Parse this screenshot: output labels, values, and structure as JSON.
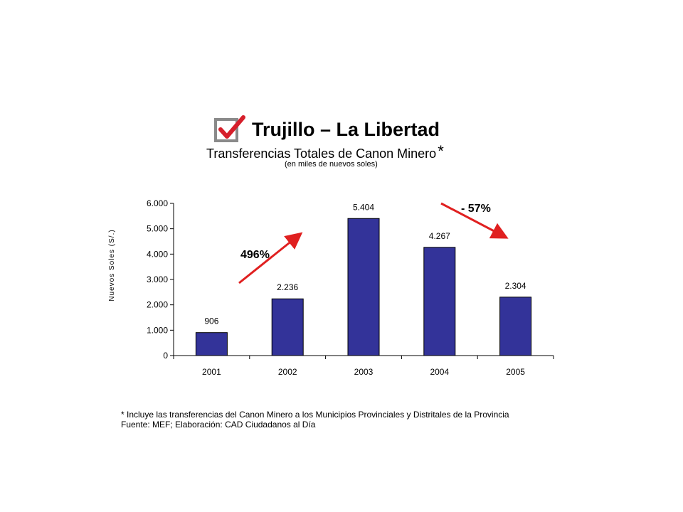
{
  "header": {
    "title": "Trujillo – La Libertad",
    "subtitle": "Transferencias Totales de Canon Minero",
    "subtitle_marker": "*",
    "units": "(en miles de nuevos soles)",
    "icon": "checkbox-check-icon"
  },
  "chart_data": {
    "type": "bar",
    "categories": [
      "2001",
      "2002",
      "2003",
      "2004",
      "2005"
    ],
    "values": [
      906,
      2236,
      5404,
      4267,
      2304
    ],
    "value_labels": [
      "906",
      "2.236",
      "5.404",
      "4.267",
      "2.304"
    ],
    "ylabel": "Nuevos Soles (S/.)",
    "ylim": [
      0,
      6000
    ],
    "yticks": [
      0,
      1000,
      2000,
      3000,
      4000,
      5000,
      6000
    ],
    "ytick_labels": [
      "0",
      "1.000",
      "2.000",
      "3.000",
      "4.000",
      "5.000",
      "6.000"
    ],
    "bar_color": "#333399",
    "grid": false,
    "legend": "none",
    "annotations": [
      {
        "text": "496%",
        "direction": "up",
        "color": "#e02020"
      },
      {
        "text": "- 57%",
        "direction": "down",
        "color": "#e02020"
      }
    ]
  },
  "footer": {
    "note": "* Incluye las transferencias del Canon Minero a los Municipios Provinciales y Distritales de la Provincia",
    "source": "Fuente: MEF; Elaboración: CAD Ciudadanos al Día"
  }
}
